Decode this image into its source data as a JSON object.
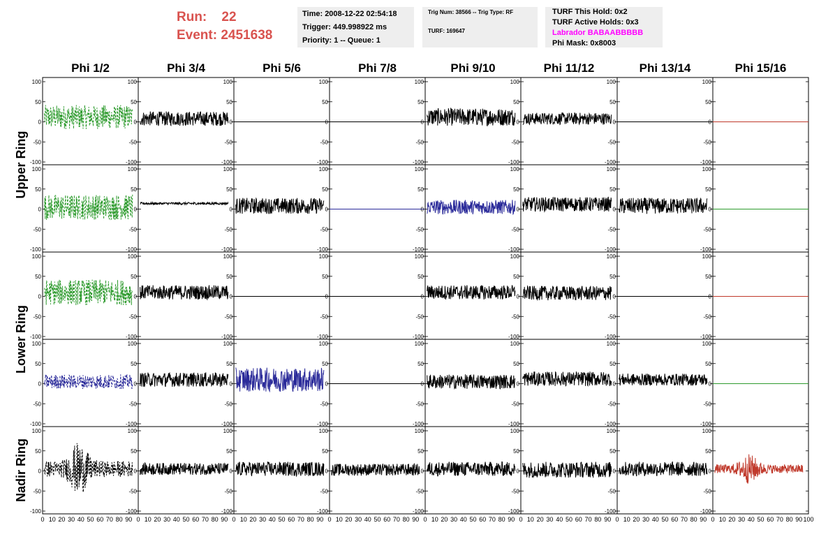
{
  "run_box": {
    "run_label": "Run:",
    "run_value": "22",
    "event_label": "Event:",
    "event_value": "2451638"
  },
  "time_box": {
    "time": "Time: 2008-12-22 02:54:18",
    "trigger": "Trigger: 449.998922 ms",
    "priority": "Priority: 1 -- Queue: 1"
  },
  "trig_box": {
    "trig": "Trig Num: 38566 -- Trig Type: RF",
    "turf": "TURF: 169647"
  },
  "turf_box": {
    "this_hold": "TURF This Hold: 0x2",
    "active_holds": "TURF Active Holds: 0x3",
    "labrador": "Labrador BABAABBBBB",
    "phi_mask": "Phi Mask: 0x8003"
  },
  "chart_data": {
    "type": "line",
    "columns": [
      "Phi 1/2",
      "Phi 3/4",
      "Phi 5/6",
      "Phi 7/8",
      "Phi 9/10",
      "Phi 11/12",
      "Phi 13/14",
      "Phi 15/16"
    ],
    "rows": [
      {
        "label": "Upper Ring",
        "span": 2
      },
      {
        "label": "Lower Ring",
        "span": 2
      },
      {
        "label": "Nadir Ring",
        "span": 1
      }
    ],
    "ylim": [
      -100,
      100
    ],
    "xlim": [
      0,
      100
    ],
    "y_ticks": [
      "100",
      "50",
      "0",
      "-50",
      "-100"
    ],
    "x_ticks": [
      "0",
      "10",
      "20",
      "30",
      "40",
      "50",
      "60",
      "70",
      "80",
      "90",
      "100"
    ],
    "colors": {
      "green": "#2e9b2e",
      "blue": "#2b2b9a",
      "black": "#000000",
      "red": "#c0392b"
    },
    "panels": [
      [
        {
          "style": "green-dashed",
          "amp": 30,
          "offset": 12
        },
        {
          "style": "black",
          "amp": 18,
          "offset": 8
        },
        {
          "style": "flat",
          "color": "black"
        },
        {
          "style": "flat",
          "color": "black"
        },
        {
          "style": "black",
          "amp": 22,
          "offset": 12
        },
        {
          "style": "black",
          "amp": 15,
          "offset": 8
        },
        {
          "style": "flat",
          "color": "black"
        },
        {
          "style": "flat",
          "color": "red"
        }
      ],
      [
        {
          "style": "green-dashed",
          "amp": 32,
          "offset": 5
        },
        {
          "style": "black",
          "amp": 3,
          "offset": 14
        },
        {
          "style": "black",
          "amp": 20,
          "offset": 8
        },
        {
          "style": "flat",
          "color": "blue"
        },
        {
          "style": "blue",
          "amp": 18,
          "offset": 5
        },
        {
          "style": "black",
          "amp": 18,
          "offset": 12
        },
        {
          "style": "black",
          "amp": 20,
          "offset": 8
        },
        {
          "style": "flat",
          "color": "green"
        }
      ],
      [
        {
          "style": "green-dashed",
          "amp": 32,
          "offset": 10
        },
        {
          "style": "black",
          "amp": 18,
          "offset": 10
        },
        {
          "style": "flat",
          "color": "black"
        },
        {
          "style": "flat",
          "color": "black"
        },
        {
          "style": "black",
          "amp": 18,
          "offset": 10
        },
        {
          "style": "black",
          "amp": 18,
          "offset": 8
        },
        {
          "style": "flat",
          "color": "black"
        },
        {
          "style": "flat",
          "color": "red"
        }
      ],
      [
        {
          "style": "blue-dashed",
          "amp": 18,
          "offset": 5
        },
        {
          "style": "black",
          "amp": 18,
          "offset": 10
        },
        {
          "style": "blue",
          "amp": 30,
          "offset": 10
        },
        {
          "style": "flat",
          "color": "black"
        },
        {
          "style": "black",
          "amp": 18,
          "offset": 5
        },
        {
          "style": "black",
          "amp": 18,
          "offset": 12
        },
        {
          "style": "black",
          "amp": 15,
          "offset": 10
        },
        {
          "style": "flat",
          "color": "green"
        }
      ],
      [
        {
          "style": "black-dashed",
          "amp": 40,
          "offset": 5
        },
        {
          "style": "black",
          "amp": 15,
          "offset": 5
        },
        {
          "style": "black",
          "amp": 18,
          "offset": 5
        },
        {
          "style": "black",
          "amp": 15,
          "offset": 3
        },
        {
          "style": "black",
          "amp": 18,
          "offset": 5
        },
        {
          "style": "black",
          "amp": 20,
          "offset": 3
        },
        {
          "style": "black",
          "amp": 18,
          "offset": 5
        },
        {
          "style": "red",
          "amp": 22,
          "offset": 5
        }
      ]
    ]
  }
}
